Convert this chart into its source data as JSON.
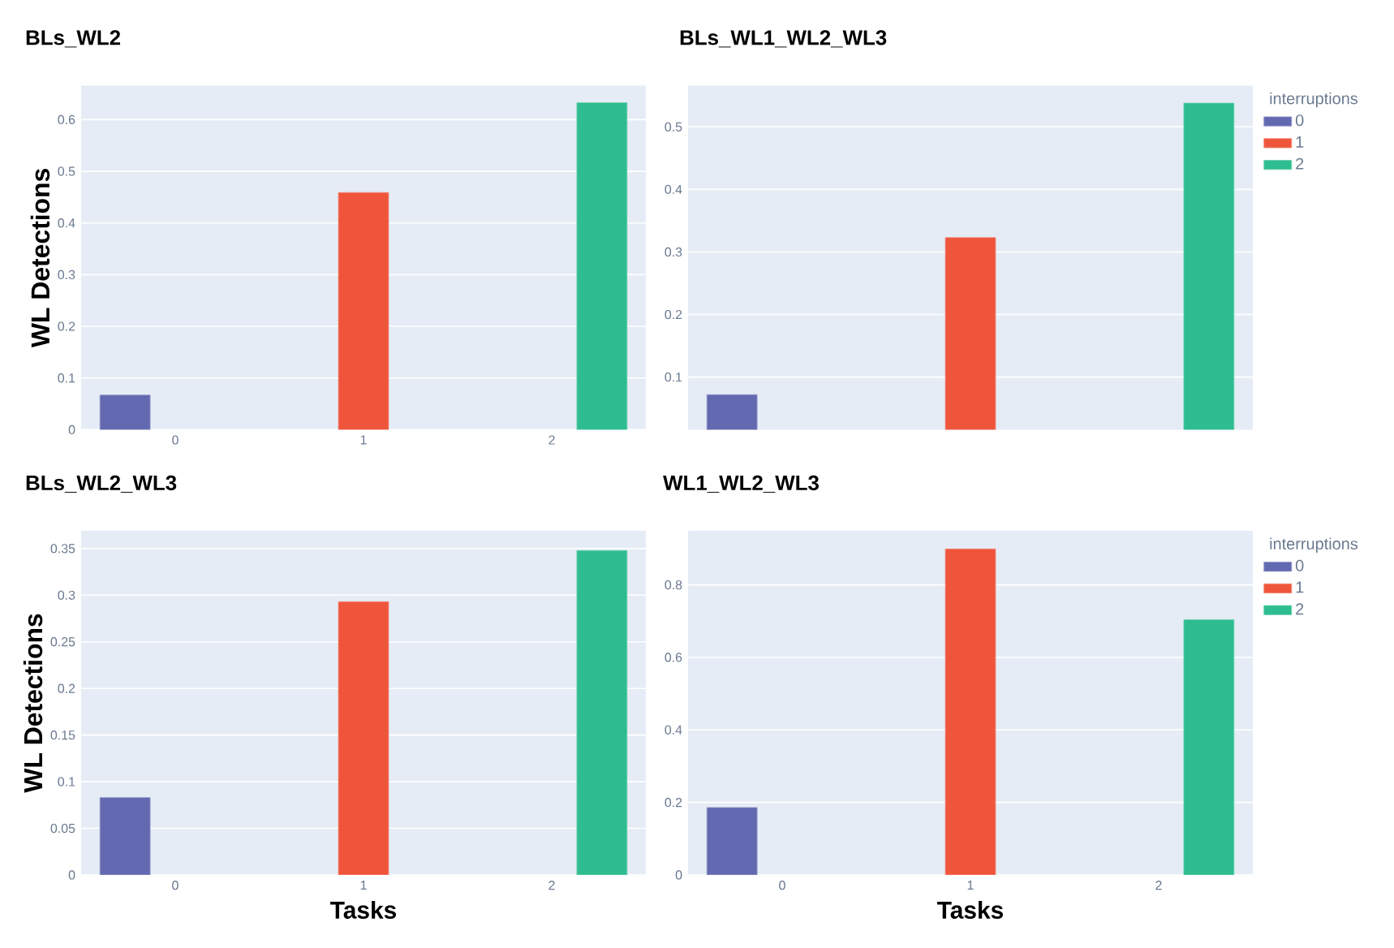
{
  "chart_data": [
    {
      "type": "bar",
      "title": "BLs_WL2",
      "ylabel": "WL Detections",
      "categories": [
        "0",
        "1",
        "2"
      ],
      "ylim": [
        0,
        0.666
      ],
      "yticks": [
        0,
        0.1,
        0.2,
        0.3,
        0.4,
        0.5,
        0.6
      ],
      "grid": "y",
      "series": [
        {
          "color": "#6369b0",
          "values": [
            0.067,
            null,
            null
          ]
        },
        {
          "color": "#ef553b",
          "values": [
            null,
            0.459,
            null
          ]
        },
        {
          "color": "#2ebd8f",
          "values": [
            null,
            null,
            0.633
          ]
        }
      ]
    },
    {
      "type": "bar",
      "title": "BLs_WL1_WL2_WL3",
      "legend_title": "interruptions",
      "legend": "top right",
      "tick_labels": "y",
      "categories": [
        "0",
        "1",
        "2"
      ],
      "ylim": [
        0.016,
        0.566
      ],
      "yticks": [
        0.1,
        0.2,
        0.3,
        0.4,
        0.5
      ],
      "grid": "y",
      "series": [
        {
          "name": "0",
          "color": "#6369b0",
          "values": [
            0.072,
            null,
            null
          ]
        },
        {
          "name": "1",
          "color": "#ef553b",
          "values": [
            null,
            0.323,
            null
          ]
        },
        {
          "name": "2",
          "color": "#2ebd8f",
          "values": [
            null,
            null,
            0.538
          ]
        }
      ]
    },
    {
      "type": "bar",
      "title": "BLs_WL2_WL3",
      "ylabel": "WL Detections",
      "xlabel": "Tasks",
      "categories": [
        "0",
        "1",
        "2"
      ],
      "ylim": [
        0,
        0.369
      ],
      "yticks": [
        0,
        0.05,
        0.1,
        0.15,
        0.2,
        0.25,
        0.3,
        0.35
      ],
      "grid": "y",
      "series": [
        {
          "color": "#6369b0",
          "values": [
            0.083,
            null,
            null
          ]
        },
        {
          "color": "#ef553b",
          "values": [
            null,
            0.293,
            null
          ]
        },
        {
          "color": "#2ebd8f",
          "values": [
            null,
            null,
            0.348
          ]
        }
      ]
    },
    {
      "type": "bar",
      "title": "WL1_WL2_WL3",
      "xlabel": "Tasks",
      "legend_title": "interruptions",
      "legend": "top right",
      "categories": [
        "0",
        "1",
        "2"
      ],
      "ylim": [
        0,
        0.949
      ],
      "yticks": [
        0,
        0.2,
        0.4,
        0.6,
        0.8
      ],
      "grid": "y",
      "series": [
        {
          "name": "0",
          "color": "#6369b0",
          "values": [
            0.186,
            null,
            null
          ]
        },
        {
          "name": "1",
          "color": "#ef553b",
          "values": [
            null,
            0.899,
            null
          ]
        },
        {
          "name": "2",
          "color": "#2ebd8f",
          "values": [
            null,
            null,
            0.704
          ]
        }
      ]
    }
  ]
}
